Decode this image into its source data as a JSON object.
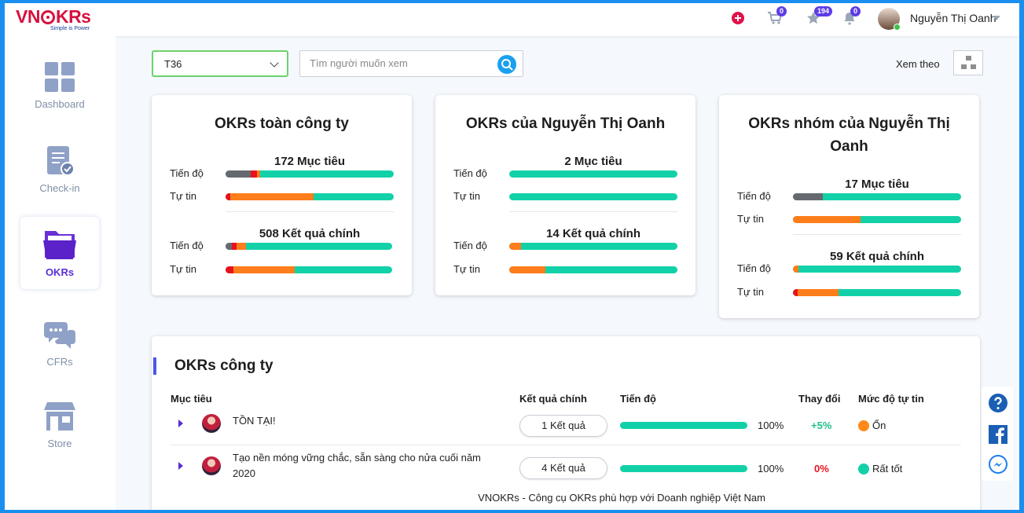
{
  "brand": {
    "logo_main": "VN",
    "logo_tail": "KRs",
    "tagline": "Simple is Power"
  },
  "topbar": {
    "cart_count": "0",
    "star_count": "194",
    "bell_count": "0",
    "user_name": "Nguyễn Thị Oanh"
  },
  "sidebar": {
    "items": [
      {
        "label": "Dashboard"
      },
      {
        "label": "Check-in"
      },
      {
        "label": "OKRs"
      },
      {
        "label": "CFRs"
      },
      {
        "label": "Store"
      }
    ]
  },
  "filters": {
    "period": "T36",
    "search_placeholder": "Tìm người muốn xem",
    "view_label": "Xem theo"
  },
  "cards": [
    {
      "title_l1": "OKRs toàn công ty",
      "title_l2": "",
      "objectives": "172 Mục tiêu",
      "key_results": "508 Kết quả chính",
      "progress_label": "Tiến độ",
      "confidence_label": "Tự tin"
    },
    {
      "title_l1": "OKRs của Nguyễn Thị Oanh",
      "title_l2": "",
      "objectives": "2 Mục tiêu",
      "key_results": "14 Kết quả chính",
      "progress_label": "Tiến độ",
      "confidence_label": "Tự tin"
    },
    {
      "title_l1": "OKRs nhóm của Nguyễn Thị",
      "title_l2": "Oanh",
      "objectives": "17 Mục tiêu",
      "key_results": "59 Kết quả chính",
      "progress_label": "Tiến độ",
      "confidence_label": "Tự tin"
    }
  ],
  "colors": {
    "gray": "#666a70",
    "red": "#e8121e",
    "orange": "#ff7d1a",
    "green": "#12d1a8"
  },
  "company": {
    "title": "OKRs công ty",
    "headers": {
      "objective": "Mục tiêu",
      "key_results": "Kết quả chính",
      "progress": "Tiến độ",
      "change": "Thay đổi",
      "confidence": "Mức độ tự tin"
    },
    "rows": [
      {
        "objective_l1": "TỒN TẠI!",
        "objective_l2": "",
        "kr": "1 Kết quả",
        "progress_pct": "100%",
        "change": "+5%",
        "confidence": "Ổn"
      },
      {
        "objective_l1": "Tạo nền móng vững chắc, sẵn sàng cho nửa cuối năm",
        "objective_l2": "2020",
        "kr": "4 Kết quả",
        "progress_pct": "100%",
        "change": "0%",
        "confidence": "Rất tốt"
      }
    ]
  },
  "footer": "VNOKRs - Công cụ OKRs phù hợp với Doanh nghiệp Việt Nam"
}
